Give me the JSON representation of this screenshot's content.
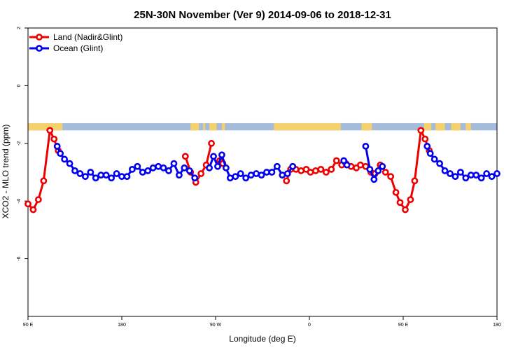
{
  "chart_data": {
    "type": "line",
    "title": "25N-30N November (Ver 9)   2014-09-06 to 2018-12-31",
    "xlabel": "Longitude (deg E)",
    "ylabel": "XCO2 - MLO trend (ppm)",
    "xlim": [
      90,
      540
    ],
    "ylim": [
      -8,
      2
    ],
    "x_ticks": [
      {
        "value": 90,
        "label": "90 E"
      },
      {
        "value": 180,
        "label": "180"
      },
      {
        "value": 270,
        "label": "90 W"
      },
      {
        "value": 360,
        "label": "0"
      },
      {
        "value": 450,
        "label": "90 E"
      },
      {
        "value": 540,
        "label": "180"
      }
    ],
    "y_ticks": [
      {
        "value": 2,
        "label": "2"
      },
      {
        "value": 0,
        "label": "0"
      },
      {
        "value": -2,
        "label": "-2"
      },
      {
        "value": -4,
        "label": "-4"
      },
      {
        "value": -6,
        "label": "-6"
      }
    ],
    "legend_position": "top-left",
    "land_ocean_strip": {
      "y_range": [
        -1.55,
        -1.3
      ],
      "ocean_color": "#a4bcd9",
      "land_color": "#f5d16e",
      "land_segments": [
        [
          90,
          123
        ],
        [
          246,
          254
        ],
        [
          258,
          260
        ],
        [
          264,
          271
        ],
        [
          276,
          279
        ],
        [
          326,
          390
        ],
        [
          410,
          420
        ],
        [
          470,
          477
        ],
        [
          481,
          490
        ],
        [
          496,
          505
        ],
        [
          510,
          515
        ]
      ]
    },
    "series": [
      {
        "name": "Land (Nadir&Glint)",
        "color": "#ee0000",
        "segments": [
          [
            [
              90,
              -4.1
            ],
            [
              95,
              -4.3
            ],
            [
              100,
              -3.95
            ],
            [
              105,
              -3.3
            ],
            [
              111,
              -1.55
            ],
            [
              115,
              -1.85
            ],
            [
              119,
              -2.25
            ]
          ],
          [
            [
              241,
              -2.45
            ],
            [
              246,
              -3.0
            ],
            [
              251,
              -3.35
            ],
            [
              256,
              -3.05
            ],
            [
              261,
              -2.75
            ],
            [
              266,
              -2.0
            ]
          ],
          [
            [
              274,
              -2.6
            ],
            [
              277,
              -2.7
            ]
          ],
          [
            [
              338,
              -3.3
            ],
            [
              342,
              -2.9
            ],
            [
              347,
              -2.9
            ],
            [
              352,
              -2.95
            ],
            [
              357,
              -2.9
            ],
            [
              361,
              -3.0
            ],
            [
              366,
              -2.95
            ],
            [
              371,
              -2.9
            ],
            [
              376,
              -3.0
            ],
            [
              381,
              -2.9
            ],
            [
              386,
              -2.6
            ],
            [
              391,
              -2.75
            ],
            [
              395,
              -2.7
            ],
            [
              400,
              -2.8
            ],
            [
              405,
              -2.85
            ],
            [
              409,
              -2.75
            ],
            [
              414,
              -2.8
            ],
            [
              419,
              -3.0
            ],
            [
              423,
              -3.05
            ],
            [
              428,
              -2.75
            ],
            [
              433,
              -3.0
            ],
            [
              438,
              -3.15
            ],
            [
              443,
              -3.7
            ],
            [
              447,
              -4.05
            ],
            [
              452,
              -4.3
            ],
            [
              457,
              -3.95
            ],
            [
              461,
              -3.3
            ],
            [
              467,
              -1.55
            ],
            [
              471,
              -1.85
            ],
            [
              475,
              -2.25
            ]
          ]
        ]
      },
      {
        "name": "Ocean (Glint)",
        "color": "#0000ee",
        "segments": [
          [
            [
              118,
              -2.1
            ],
            [
              121,
              -2.35
            ],
            [
              125,
              -2.55
            ],
            [
              130,
              -2.7
            ],
            [
              135,
              -2.95
            ],
            [
              140,
              -3.05
            ],
            [
              145,
              -3.15
            ],
            [
              150,
              -3.0
            ],
            [
              155,
              -3.2
            ],
            [
              160,
              -3.1
            ],
            [
              165,
              -3.1
            ],
            [
              170,
              -3.2
            ],
            [
              175,
              -3.05
            ],
            [
              180,
              -3.15
            ],
            [
              185,
              -3.15
            ],
            [
              190,
              -2.9
            ],
            [
              195,
              -2.8
            ],
            [
              200,
              -3.0
            ],
            [
              205,
              -2.95
            ],
            [
              210,
              -2.85
            ],
            [
              215,
              -2.8
            ],
            [
              220,
              -2.85
            ],
            [
              225,
              -2.95
            ],
            [
              230,
              -2.7
            ],
            [
              235,
              -3.1
            ],
            [
              240,
              -2.85
            ],
            [
              245,
              -2.95
            ],
            [
              250,
              -3.2
            ]
          ],
          [
            [
              264,
              -2.85
            ],
            [
              268,
              -2.45
            ],
            [
              272,
              -2.8
            ],
            [
              276,
              -2.4
            ],
            [
              280,
              -2.85
            ],
            [
              284,
              -3.2
            ],
            [
              289,
              -3.15
            ],
            [
              294,
              -3.05
            ],
            [
              299,
              -3.2
            ],
            [
              304,
              -3.1
            ],
            [
              309,
              -3.05
            ],
            [
              314,
              -3.1
            ],
            [
              319,
              -3.0
            ],
            [
              324,
              -3.0
            ],
            [
              329,
              -2.8
            ],
            [
              334,
              -3.1
            ],
            [
              339,
              -3.05
            ],
            [
              344,
              -2.8
            ]
          ],
          [
            [
              393,
              -2.6
            ],
            [
              396,
              -2.75
            ]
          ],
          [
            [
              414,
              -2.1
            ],
            [
              418,
              -2.9
            ],
            [
              422,
              -3.25
            ],
            [
              426,
              -2.95
            ],
            [
              430,
              -2.8
            ]
          ],
          [
            [
              473,
              -2.1
            ],
            [
              476,
              -2.35
            ],
            [
              480,
              -2.55
            ],
            [
              485,
              -2.7
            ],
            [
              490,
              -2.95
            ],
            [
              495,
              -3.05
            ],
            [
              500,
              -3.15
            ],
            [
              505,
              -3.0
            ],
            [
              510,
              -3.2
            ],
            [
              515,
              -3.1
            ],
            [
              520,
              -3.1
            ],
            [
              525,
              -3.2
            ],
            [
              530,
              -3.05
            ],
            [
              535,
              -3.15
            ],
            [
              540,
              -3.05
            ]
          ]
        ]
      }
    ]
  }
}
